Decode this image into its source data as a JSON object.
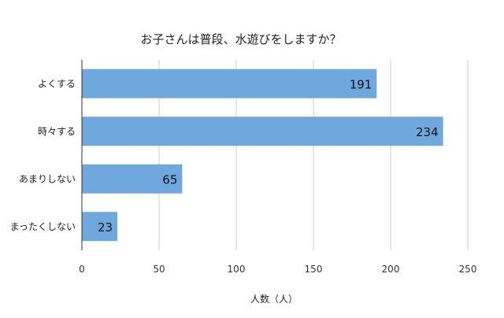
{
  "chart_data": {
    "type": "bar",
    "orientation": "horizontal",
    "title": "お子さんは普段、水遊びをしますか？",
    "categories": [
      "よくする",
      "時々する",
      "あまりしない",
      "まったくしない"
    ],
    "values": [
      191,
      234,
      65,
      23
    ],
    "xlabel": "人数（人）",
    "ylabel": "",
    "xlim": [
      0,
      250
    ],
    "xticks": [
      0,
      50,
      100,
      150,
      200,
      250
    ],
    "grid": true,
    "legend": "none",
    "data_labels": true,
    "bar_color": "#6fa8dc"
  }
}
